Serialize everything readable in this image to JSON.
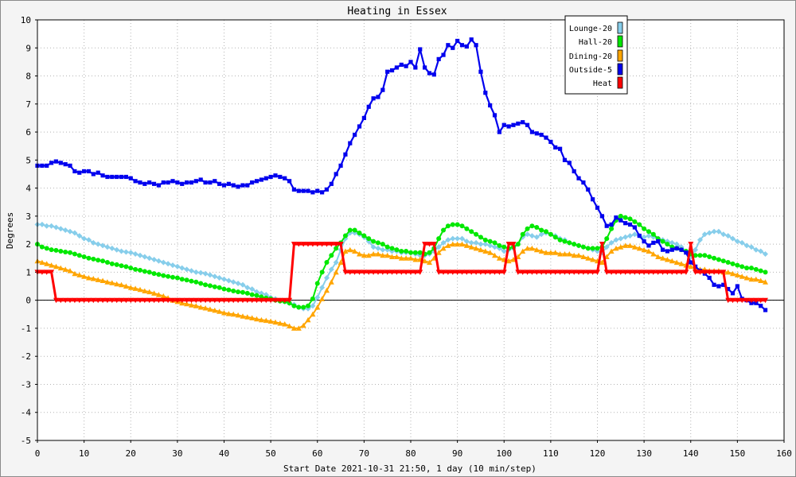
{
  "chart_data": {
    "type": "line",
    "title": "Heating in Essex",
    "xlabel": "Start Date 2021-10-31 21:50, 1 day (10 min/step)",
    "ylabel": "Degrees",
    "xlim": [
      0,
      160
    ],
    "ylim": [
      -5,
      10
    ],
    "x_ticks": [
      0,
      10,
      20,
      30,
      40,
      50,
      60,
      70,
      80,
      90,
      100,
      110,
      120,
      130,
      140,
      150,
      160
    ],
    "y_ticks": [
      -5,
      -4,
      -3,
      -2,
      -1,
      0,
      1,
      2,
      3,
      4,
      5,
      6,
      7,
      8,
      9,
      10
    ],
    "grid": true,
    "zero_line": true,
    "legend": "top-right",
    "x": [
      0,
      1,
      2,
      3,
      4,
      5,
      6,
      7,
      8,
      9,
      10,
      11,
      12,
      13,
      14,
      15,
      16,
      17,
      18,
      19,
      20,
      21,
      22,
      23,
      24,
      25,
      26,
      27,
      28,
      29,
      30,
      31,
      32,
      33,
      34,
      35,
      36,
      37,
      38,
      39,
      40,
      41,
      42,
      43,
      44,
      45,
      46,
      47,
      48,
      49,
      50,
      51,
      52,
      53,
      54,
      55,
      56,
      57,
      58,
      59,
      60,
      61,
      62,
      63,
      64,
      65,
      66,
      67,
      68,
      69,
      70,
      71,
      72,
      73,
      74,
      75,
      76,
      77,
      78,
      79,
      80,
      81,
      82,
      83,
      84,
      85,
      86,
      87,
      88,
      89,
      90,
      91,
      92,
      93,
      94,
      95,
      96,
      97,
      98,
      99,
      100,
      101,
      102,
      103,
      104,
      105,
      106,
      107,
      108,
      109,
      110,
      111,
      112,
      113,
      114,
      115,
      116,
      117,
      118,
      119,
      120,
      121,
      122,
      123,
      124,
      125,
      126,
      127,
      128,
      129,
      130,
      131,
      132,
      133,
      134,
      135,
      136,
      137,
      138,
      139,
      140,
      141,
      142,
      143,
      144,
      145,
      146,
      147,
      148,
      149,
      150,
      151,
      152,
      153,
      154,
      155,
      156
    ],
    "series": [
      {
        "name": "Lounge-20",
        "color": "#87ceeb",
        "marker": "diamond",
        "values": [
          2.7,
          2.7,
          2.65,
          2.65,
          2.6,
          2.55,
          2.5,
          2.45,
          2.4,
          2.3,
          2.2,
          2.15,
          2.05,
          2.0,
          1.95,
          1.9,
          1.85,
          1.8,
          1.75,
          1.72,
          1.7,
          1.65,
          1.6,
          1.55,
          1.5,
          1.45,
          1.4,
          1.35,
          1.3,
          1.25,
          1.2,
          1.15,
          1.1,
          1.05,
          1.0,
          0.98,
          0.95,
          0.9,
          0.85,
          0.8,
          0.75,
          0.7,
          0.65,
          0.6,
          0.55,
          0.45,
          0.4,
          0.3,
          0.25,
          0.2,
          0.1,
          0.05,
          0.0,
          -0.05,
          -0.1,
          -0.15,
          -0.25,
          -0.3,
          -0.3,
          -0.2,
          0.1,
          0.45,
          0.8,
          1.1,
          1.35,
          1.8,
          2.2,
          2.4,
          2.4,
          2.35,
          2.25,
          2.1,
          1.9,
          1.85,
          1.8,
          1.8,
          1.75,
          1.75,
          1.7,
          1.7,
          1.7,
          1.65,
          1.6,
          1.6,
          1.65,
          1.75,
          1.9,
          2.05,
          2.15,
          2.2,
          2.2,
          2.2,
          2.1,
          2.05,
          2.05,
          2.0,
          2.0,
          1.95,
          1.9,
          1.85,
          1.75,
          1.8,
          1.85,
          2.0,
          2.25,
          2.35,
          2.3,
          2.25,
          2.35,
          2.4,
          2.35,
          2.3,
          2.2,
          2.15,
          2.05,
          2.0,
          1.95,
          1.9,
          1.85,
          1.8,
          1.75,
          1.7,
          1.9,
          2.05,
          2.15,
          2.2,
          2.25,
          2.3,
          2.35,
          2.3,
          2.25,
          2.3,
          2.25,
          2.2,
          2.15,
          2.1,
          2.05,
          2.0,
          1.9,
          1.75,
          1.55,
          1.8,
          2.15,
          2.35,
          2.4,
          2.45,
          2.45,
          2.35,
          2.3,
          2.2,
          2.1,
          2.05,
          1.95,
          1.9,
          1.8,
          1.75,
          1.65
        ]
      },
      {
        "name": "Hall-20",
        "color": "#00e800",
        "marker": "circle",
        "values": [
          2.0,
          1.9,
          1.85,
          1.8,
          1.78,
          1.75,
          1.72,
          1.7,
          1.65,
          1.6,
          1.55,
          1.5,
          1.47,
          1.43,
          1.4,
          1.35,
          1.3,
          1.27,
          1.23,
          1.2,
          1.15,
          1.1,
          1.07,
          1.03,
          1.0,
          0.95,
          0.92,
          0.88,
          0.85,
          0.82,
          0.8,
          0.75,
          0.72,
          0.68,
          0.65,
          0.6,
          0.55,
          0.52,
          0.48,
          0.45,
          0.4,
          0.37,
          0.33,
          0.3,
          0.28,
          0.25,
          0.2,
          0.17,
          0.12,
          0.08,
          0.05,
          0.0,
          -0.03,
          -0.05,
          -0.1,
          -0.2,
          -0.25,
          -0.25,
          -0.2,
          0.05,
          0.6,
          1.0,
          1.35,
          1.6,
          1.85,
          2.05,
          2.3,
          2.5,
          2.5,
          2.4,
          2.3,
          2.2,
          2.1,
          2.05,
          2.0,
          1.9,
          1.85,
          1.8,
          1.75,
          1.75,
          1.7,
          1.7,
          1.7,
          1.65,
          1.7,
          1.85,
          2.2,
          2.5,
          2.65,
          2.7,
          2.7,
          2.65,
          2.55,
          2.45,
          2.35,
          2.25,
          2.15,
          2.1,
          2.05,
          1.95,
          1.9,
          1.85,
          1.9,
          2.0,
          2.35,
          2.55,
          2.65,
          2.6,
          2.5,
          2.45,
          2.35,
          2.25,
          2.15,
          2.1,
          2.05,
          2.0,
          1.95,
          1.9,
          1.85,
          1.85,
          1.85,
          1.9,
          2.2,
          2.55,
          2.85,
          3.0,
          2.95,
          2.9,
          2.8,
          2.7,
          2.55,
          2.45,
          2.35,
          2.2,
          2.1,
          2.0,
          1.9,
          1.85,
          1.8,
          1.75,
          1.65,
          1.6,
          1.6,
          1.6,
          1.55,
          1.5,
          1.45,
          1.4,
          1.35,
          1.3,
          1.25,
          1.2,
          1.15,
          1.15,
          1.1,
          1.05,
          1.0
        ]
      },
      {
        "name": "Dining-20",
        "color": "#ffa500",
        "marker": "triangle-up",
        "values": [
          1.4,
          1.35,
          1.3,
          1.25,
          1.2,
          1.15,
          1.1,
          1.05,
          0.95,
          0.9,
          0.85,
          0.8,
          0.77,
          0.73,
          0.7,
          0.65,
          0.62,
          0.58,
          0.55,
          0.5,
          0.45,
          0.42,
          0.38,
          0.33,
          0.3,
          0.25,
          0.2,
          0.15,
          0.08,
          0.0,
          -0.05,
          -0.1,
          -0.13,
          -0.17,
          -0.2,
          -0.25,
          -0.28,
          -0.32,
          -0.36,
          -0.4,
          -0.45,
          -0.48,
          -0.5,
          -0.53,
          -0.57,
          -0.6,
          -0.63,
          -0.67,
          -0.7,
          -0.72,
          -0.75,
          -0.78,
          -0.82,
          -0.85,
          -0.92,
          -1.0,
          -1.0,
          -0.9,
          -0.7,
          -0.5,
          -0.25,
          0.05,
          0.35,
          0.65,
          1.0,
          1.35,
          1.75,
          1.8,
          1.75,
          1.65,
          1.6,
          1.6,
          1.65,
          1.65,
          1.6,
          1.6,
          1.55,
          1.55,
          1.5,
          1.5,
          1.5,
          1.45,
          1.45,
          1.4,
          1.35,
          1.5,
          1.7,
          1.85,
          1.95,
          2.0,
          2.0,
          2.0,
          1.95,
          1.9,
          1.85,
          1.8,
          1.75,
          1.7,
          1.6,
          1.5,
          1.45,
          1.4,
          1.45,
          1.55,
          1.75,
          1.85,
          1.85,
          1.8,
          1.75,
          1.7,
          1.7,
          1.7,
          1.65,
          1.65,
          1.65,
          1.6,
          1.6,
          1.55,
          1.5,
          1.45,
          1.4,
          1.35,
          1.55,
          1.75,
          1.85,
          1.9,
          1.95,
          1.95,
          1.9,
          1.85,
          1.8,
          1.75,
          1.65,
          1.55,
          1.5,
          1.45,
          1.4,
          1.35,
          1.3,
          1.25,
          1.2,
          1.15,
          1.1,
          1.1,
          1.05,
          1.05,
          1.05,
          1.0,
          1.0,
          0.95,
          0.9,
          0.85,
          0.8,
          0.75,
          0.75,
          0.7,
          0.65
        ]
      },
      {
        "name": "Outside-5",
        "color": "#0000ee",
        "marker": "square",
        "values": [
          4.8,
          4.8,
          4.8,
          4.9,
          4.95,
          4.9,
          4.85,
          4.8,
          4.6,
          4.55,
          4.6,
          4.6,
          4.5,
          4.55,
          4.45,
          4.4,
          4.4,
          4.4,
          4.4,
          4.4,
          4.35,
          4.25,
          4.2,
          4.15,
          4.2,
          4.15,
          4.1,
          4.2,
          4.2,
          4.25,
          4.2,
          4.15,
          4.2,
          4.2,
          4.25,
          4.3,
          4.2,
          4.2,
          4.25,
          4.15,
          4.1,
          4.15,
          4.1,
          4.05,
          4.1,
          4.1,
          4.2,
          4.25,
          4.3,
          4.35,
          4.4,
          4.45,
          4.4,
          4.35,
          4.25,
          3.95,
          3.9,
          3.9,
          3.9,
          3.85,
          3.9,
          3.85,
          3.95,
          4.15,
          4.5,
          4.8,
          5.2,
          5.6,
          5.9,
          6.2,
          6.5,
          6.9,
          7.2,
          7.25,
          7.5,
          8.15,
          8.2,
          8.3,
          8.4,
          8.35,
          8.5,
          8.3,
          8.95,
          8.3,
          8.1,
          8.05,
          8.6,
          8.75,
          9.1,
          9.0,
          9.25,
          9.1,
          9.05,
          9.3,
          9.1,
          8.15,
          7.4,
          6.95,
          6.6,
          6.0,
          6.25,
          6.2,
          6.25,
          6.3,
          6.35,
          6.25,
          6.0,
          5.95,
          5.9,
          5.8,
          5.65,
          5.45,
          5.4,
          5.0,
          4.9,
          4.6,
          4.35,
          4.2,
          3.95,
          3.6,
          3.3,
          3.0,
          2.65,
          2.7,
          2.95,
          2.85,
          2.75,
          2.7,
          2.6,
          2.3,
          2.1,
          1.95,
          2.05,
          2.1,
          1.8,
          1.75,
          1.8,
          1.85,
          1.8,
          1.7,
          1.35,
          1.2,
          1.05,
          0.95,
          0.8,
          0.55,
          0.5,
          0.55,
          0.4,
          0.25,
          0.5,
          0.05,
          0.0,
          -0.1,
          -0.1,
          -0.2,
          -0.35
        ]
      },
      {
        "name": "Heat",
        "color": "#ff0000",
        "marker": "triangle-down",
        "values": [
          1,
          1,
          1,
          1,
          0,
          0,
          0,
          0,
          0,
          0,
          0,
          0,
          0,
          0,
          0,
          0,
          0,
          0,
          0,
          0,
          0,
          0,
          0,
          0,
          0,
          0,
          0,
          0,
          0,
          0,
          0,
          0,
          0,
          0,
          0,
          0,
          0,
          0,
          0,
          0,
          0,
          0,
          0,
          0,
          0,
          0,
          0,
          0,
          0,
          0,
          0,
          0,
          0,
          0,
          0,
          2,
          2,
          2,
          2,
          2,
          2,
          2,
          2,
          2,
          2,
          2,
          1,
          1,
          1,
          1,
          1,
          1,
          1,
          1,
          1,
          1,
          1,
          1,
          1,
          1,
          1,
          1,
          1,
          2,
          2,
          2,
          1,
          1,
          1,
          1,
          1,
          1,
          1,
          1,
          1,
          1,
          1,
          1,
          1,
          1,
          1,
          2,
          2,
          1,
          1,
          1,
          1,
          1,
          1,
          1,
          1,
          1,
          1,
          1,
          1,
          1,
          1,
          1,
          1,
          1,
          1,
          2,
          1,
          1,
          1,
          1,
          1,
          1,
          1,
          1,
          1,
          1,
          1,
          1,
          1,
          1,
          1,
          1,
          1,
          1,
          2,
          1,
          1,
          1,
          1,
          1,
          1,
          1,
          0,
          0,
          0,
          0,
          0,
          0,
          0,
          0,
          0
        ]
      }
    ]
  }
}
